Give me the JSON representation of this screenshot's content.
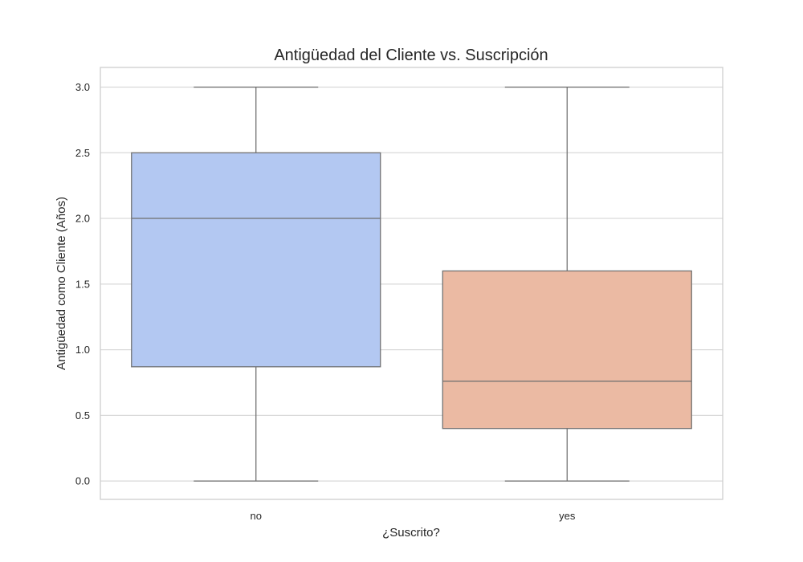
{
  "chart_data": {
    "type": "box",
    "title": "Antigüedad del Cliente vs. Suscripción",
    "xlabel": "¿Suscrito?",
    "ylabel": "Antigüedad como Cliente (Años)",
    "categories": [
      "no",
      "yes"
    ],
    "boxes": [
      {
        "category": "no",
        "min": 0.0,
        "q1": 0.87,
        "median": 2.0,
        "q3": 2.5,
        "max": 3.0,
        "color": "#b3c8f2"
      },
      {
        "category": "yes",
        "min": 0.0,
        "q1": 0.4,
        "median": 0.76,
        "q3": 1.6,
        "max": 3.0,
        "color": "#ebbaa3"
      }
    ],
    "ylim": [
      -0.14,
      3.15
    ],
    "yticks": [
      "0.0",
      "0.5",
      "1.0",
      "1.5",
      "2.0",
      "2.5",
      "3.0"
    ],
    "grid": "horizontal",
    "legend": "none"
  }
}
